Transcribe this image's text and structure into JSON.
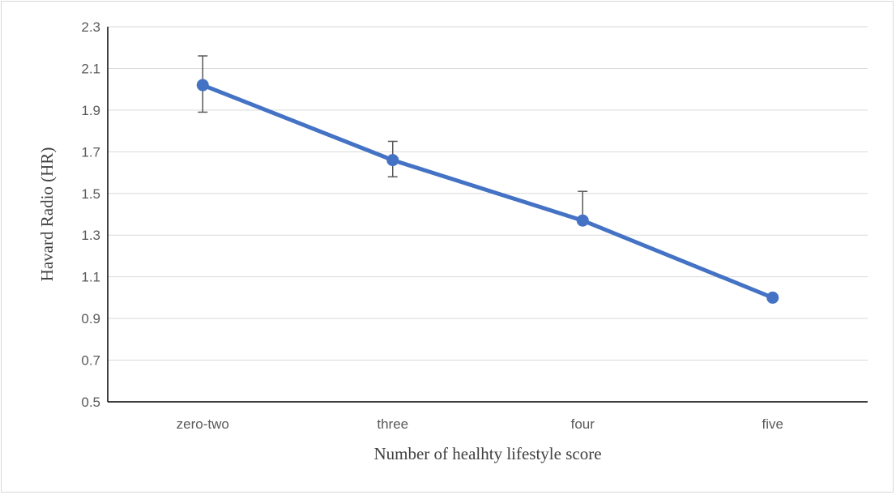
{
  "chart_data": {
    "type": "line",
    "title": "",
    "xlabel": "Number of  healhty lifestyle score",
    "ylabel": "Havard Radio (HR)",
    "categories": [
      "zero-two",
      "three",
      "four",
      "five"
    ],
    "series": [
      {
        "values": [
          2.02,
          1.66,
          1.37,
          1.0
        ],
        "error_low": [
          1.89,
          1.58,
          1.37,
          1.0
        ],
        "error_high": [
          2.16,
          1.75,
          1.51,
          1.0
        ],
        "color": "#4472C4"
      }
    ],
    "ylim": [
      0.5,
      2.3
    ],
    "yticks": [
      "0.5",
      "0.7",
      "0.9",
      "1.1",
      "1.3",
      "1.5",
      "1.7",
      "1.9",
      "2.1",
      "2.3"
    ],
    "grid": true,
    "legend": "none",
    "marker": "circle"
  }
}
